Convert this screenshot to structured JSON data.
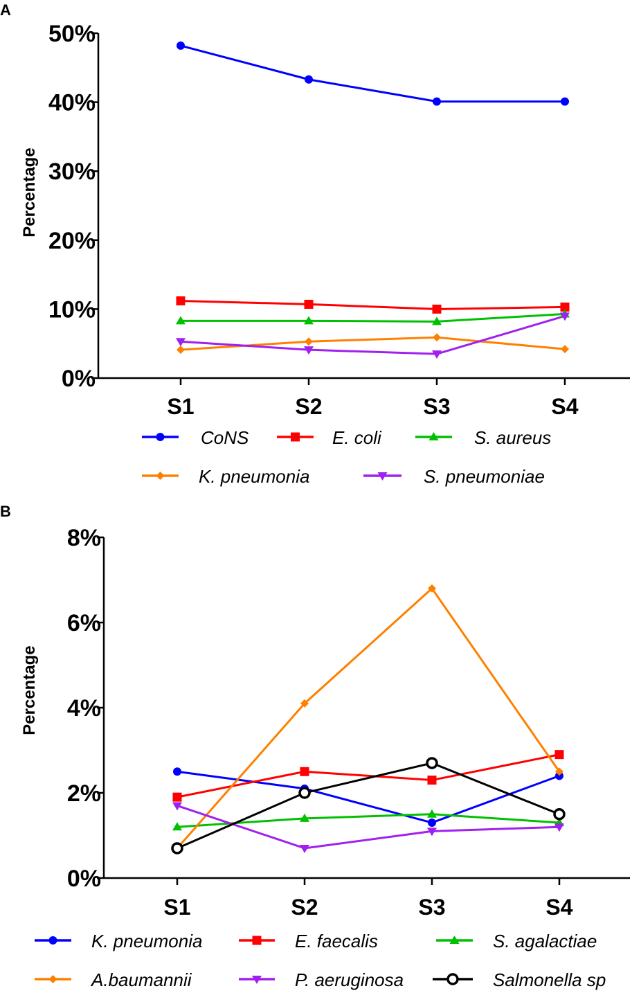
{
  "chart_data": [
    {
      "panel": "A",
      "type": "line",
      "ylabel": "Percentage",
      "categories": [
        "S1",
        "S2",
        "S3",
        "S4"
      ],
      "ylim": [
        0,
        50
      ],
      "yticks": [
        0,
        10,
        20,
        30,
        40,
        50
      ],
      "ytick_labels": [
        "0%",
        "10%",
        "20%",
        "30%",
        "40%",
        "50%"
      ],
      "series": [
        {
          "name": "CoNS",
          "color": "#0000ff",
          "marker": "circle",
          "values": [
            48.2,
            43.3,
            40.1,
            40.1
          ]
        },
        {
          "name": "E. coli",
          "color": "#ff0000",
          "marker": "square",
          "values": [
            11.2,
            10.7,
            10.0,
            10.3
          ]
        },
        {
          "name": "S. aureus",
          "color": "#00c000",
          "marker": "triangle-up",
          "values": [
            8.3,
            8.3,
            8.2,
            9.3
          ]
        },
        {
          "name": "K. pneumonia",
          "color": "#ff8000",
          "marker": "diamond",
          "values": [
            4.1,
            5.3,
            5.9,
            4.2
          ]
        },
        {
          "name": "S. pneumoniae",
          "color": "#a020f0",
          "marker": "triangle-down",
          "values": [
            5.3,
            4.1,
            3.5,
            9.0
          ]
        }
      ]
    },
    {
      "panel": "B",
      "type": "line",
      "ylabel": "Percentage",
      "categories": [
        "S1",
        "S2",
        "S3",
        "S4"
      ],
      "ylim": [
        0,
        8
      ],
      "yticks": [
        0,
        2,
        4,
        6,
        8
      ],
      "ytick_labels": [
        "0%",
        "2%",
        "4%",
        "6%",
        "8%"
      ],
      "series": [
        {
          "name": "K. pneumonia",
          "color": "#0000ff",
          "marker": "circle",
          "values": [
            2.5,
            2.1,
            1.3,
            2.4
          ]
        },
        {
          "name": "E. faecalis",
          "color": "#ff0000",
          "marker": "square",
          "values": [
            1.9,
            2.5,
            2.3,
            2.9
          ]
        },
        {
          "name": "S. agalactiae",
          "color": "#00c000",
          "marker": "triangle-up",
          "values": [
            1.2,
            1.4,
            1.5,
            1.3
          ]
        },
        {
          "name": "A.baumannii",
          "color": "#ff8000",
          "marker": "diamond",
          "values": [
            0.7,
            4.1,
            6.8,
            2.5
          ]
        },
        {
          "name": "P. aeruginosa",
          "color": "#a020f0",
          "marker": "triangle-down",
          "values": [
            1.7,
            0.7,
            1.1,
            1.2
          ]
        },
        {
          "name": "Salmonella sp",
          "color": "#000000",
          "marker": "open-circle",
          "values": [
            0.7,
            2.0,
            2.7,
            1.5
          ]
        }
      ]
    }
  ]
}
